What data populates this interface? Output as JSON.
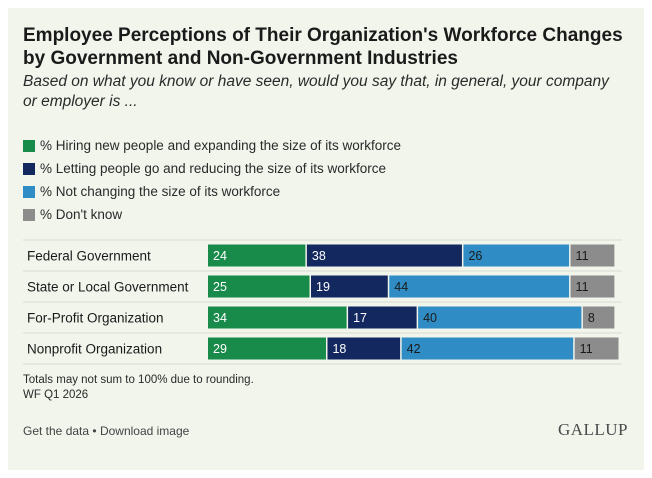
{
  "links": {
    "get_data": "Get the data",
    "separator": "•",
    "download": "Download image"
  },
  "brand": "GALLUP",
  "chart_data": {
    "type": "bar",
    "orientation": "horizontal",
    "stacked": true,
    "title": "Employee Perceptions of Their Organization's Workforce Changes by Government and Non-Government Industries",
    "subtitle": "Based on what you know or have seen, would you say that, in general, your company or employer is ...",
    "categories": [
      "Federal Government",
      "State or Local Government",
      "For-Profit Organization",
      "Nonprofit Organization"
    ],
    "series": [
      {
        "name": "% Hiring new people and expanding the size of its workforce",
        "color": "#188a4a",
        "label_color": "#ffffff",
        "values": [
          24,
          25,
          34,
          29
        ]
      },
      {
        "name": "% Letting people go and reducing the size of its workforce",
        "color": "#13285e",
        "label_color": "#ffffff",
        "values": [
          38,
          19,
          17,
          18
        ]
      },
      {
        "name": "% Not changing the size of its workforce",
        "color": "#2f8cc4",
        "label_color": "#1a1a1a",
        "values": [
          26,
          44,
          40,
          42
        ]
      },
      {
        "name": "% Don't know",
        "color": "#8c8c8c",
        "label_color": "#1a1a1a",
        "values": [
          11,
          11,
          8,
          11
        ]
      }
    ],
    "xlim": [
      0,
      100
    ],
    "legend_position": "top-left",
    "grid": false,
    "notes": [
      "Totals may not sum to 100% due to rounding.",
      "WF Q1 2026"
    ]
  }
}
